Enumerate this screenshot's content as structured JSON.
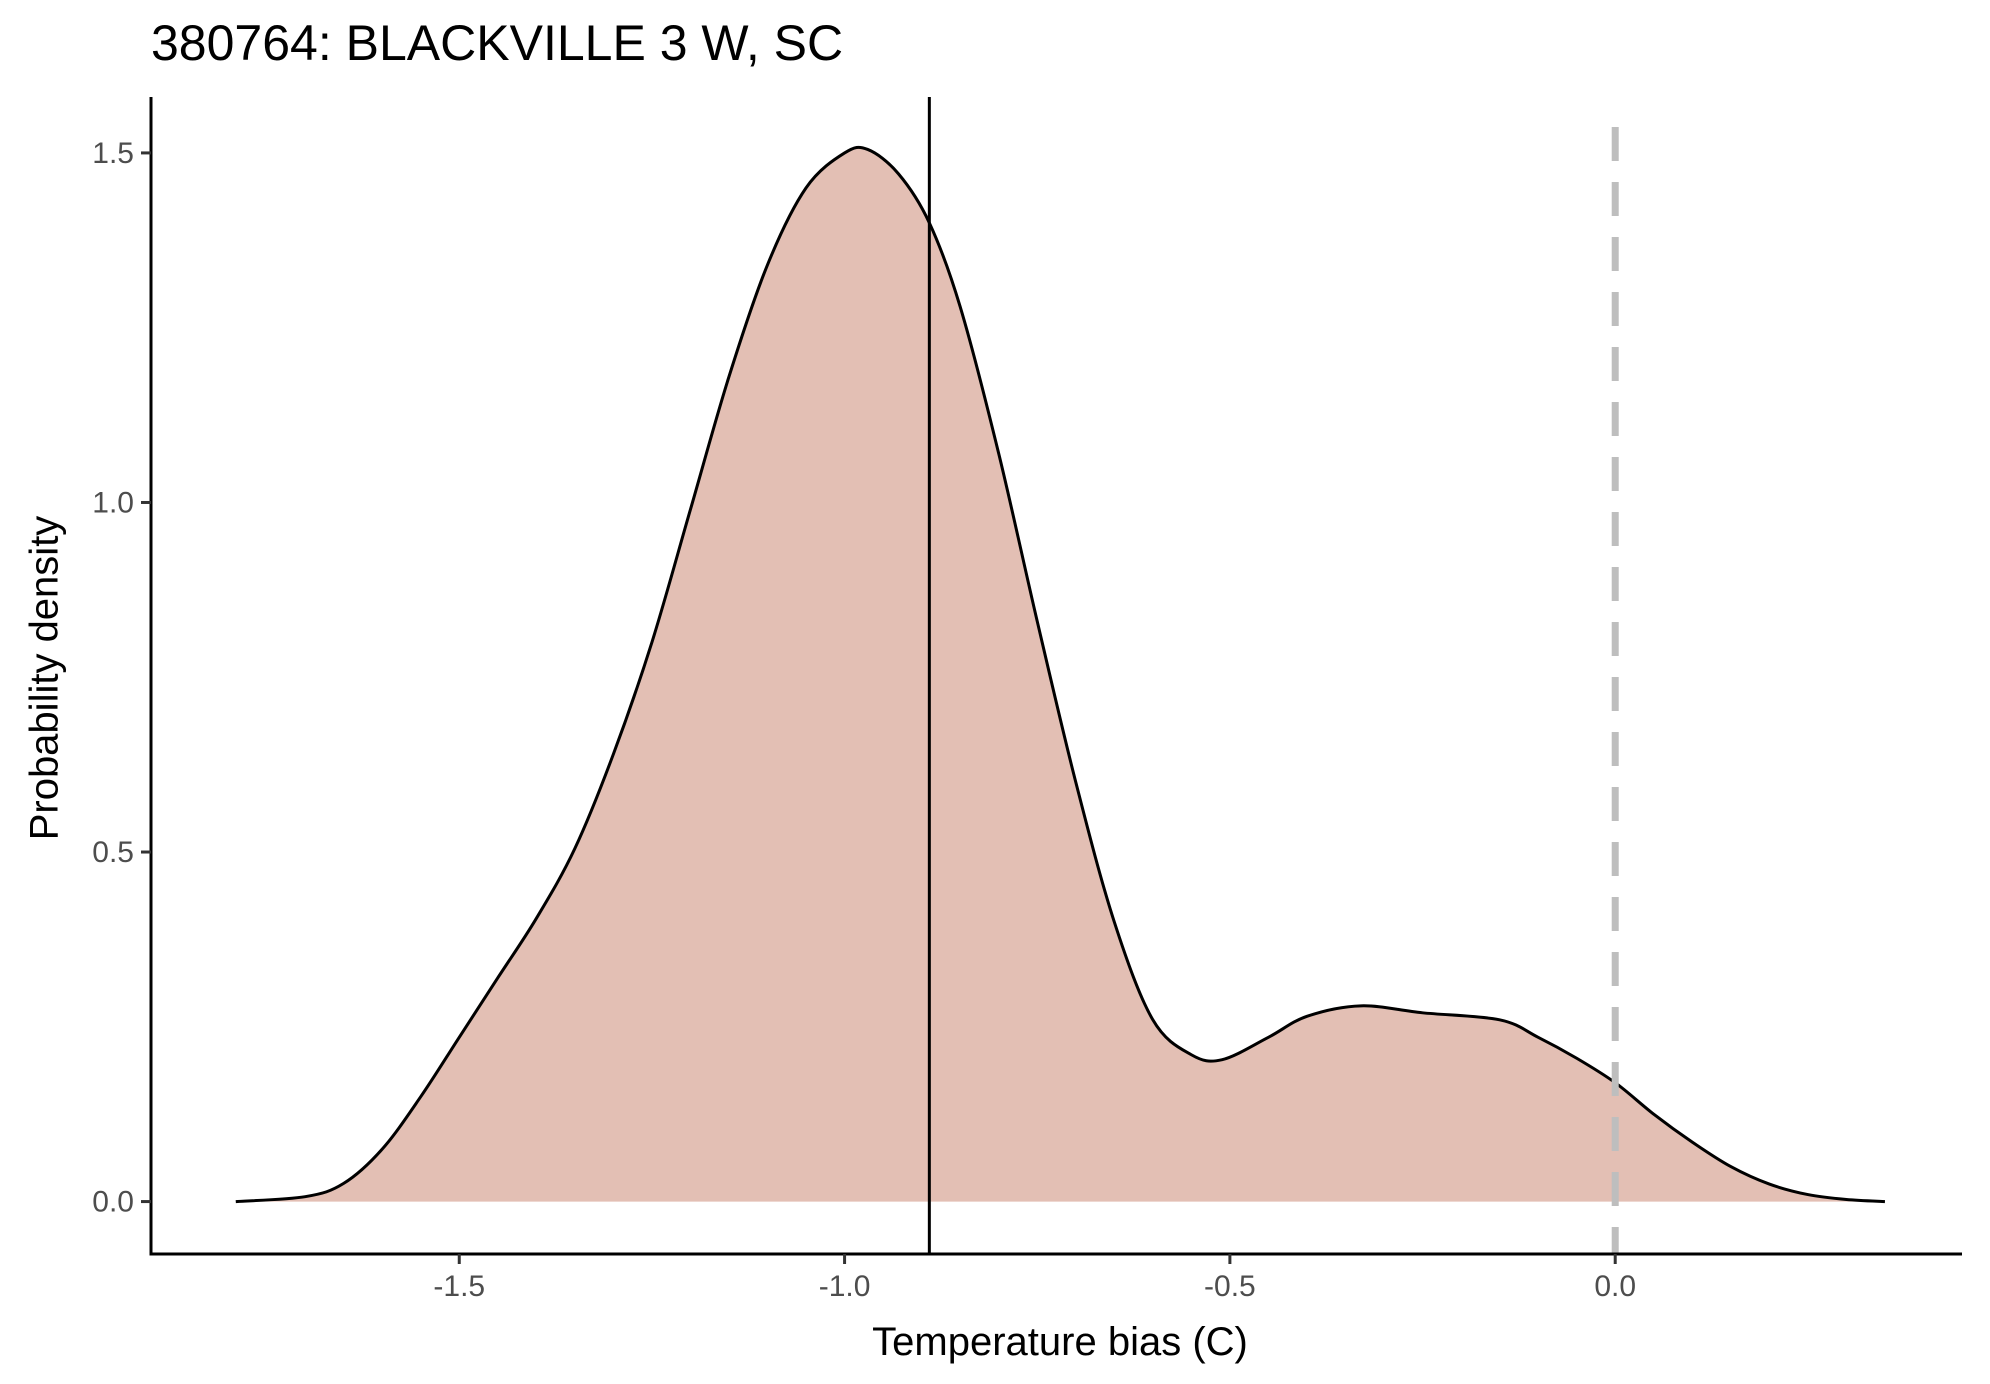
{
  "chart_data": {
    "type": "area",
    "title": "380764: BLACKVILLE 3 W, SC",
    "xlabel": "Temperature bias (C)",
    "ylabel": "Probability density",
    "xlim": [
      -1.9,
      0.45
    ],
    "ylim": [
      -0.075,
      1.58
    ],
    "x_ticks": [
      -1.5,
      -1.0,
      -0.5,
      0.0
    ],
    "x_tick_labels": [
      "-1.5",
      "-1.0",
      "-0.5",
      "0.0"
    ],
    "y_ticks": [
      0.0,
      0.5,
      1.0,
      1.5
    ],
    "y_tick_labels": [
      "0.0",
      "0.5",
      "1.0",
      "1.5"
    ],
    "grid": false,
    "fill_color": "#e3bfb4",
    "line_color": "#000000",
    "reference_lines": [
      {
        "x": -0.89,
        "style": "solid",
        "color": "#000000"
      },
      {
        "x": 0.0,
        "style": "dashed",
        "color": "#bebebe"
      }
    ],
    "series": [
      {
        "x": [
          -1.79,
          -1.7,
          -1.65,
          -1.6,
          -1.55,
          -1.5,
          -1.45,
          -1.4,
          -1.35,
          -1.3,
          -1.25,
          -1.2,
          -1.15,
          -1.1,
          -1.05,
          -1.0,
          -0.97,
          -0.93,
          -0.89,
          -0.85,
          -0.8,
          -0.75,
          -0.7,
          -0.65,
          -0.6,
          -0.55,
          -0.51,
          -0.45,
          -0.4,
          -0.33,
          -0.25,
          -0.15,
          -0.1,
          -0.05,
          0.0,
          0.05,
          0.1,
          0.15,
          0.2,
          0.25,
          0.3,
          0.35
        ],
        "y": [
          0.0,
          0.007,
          0.026,
          0.075,
          0.15,
          0.235,
          0.32,
          0.405,
          0.505,
          0.64,
          0.8,
          0.99,
          1.18,
          1.34,
          1.45,
          1.5,
          1.505,
          1.47,
          1.4,
          1.28,
          1.07,
          0.83,
          0.6,
          0.4,
          0.26,
          0.21,
          0.203,
          0.235,
          0.265,
          0.28,
          0.27,
          0.26,
          0.235,
          0.205,
          0.17,
          0.125,
          0.085,
          0.05,
          0.025,
          0.01,
          0.003,
          0.0
        ]
      }
    ]
  }
}
